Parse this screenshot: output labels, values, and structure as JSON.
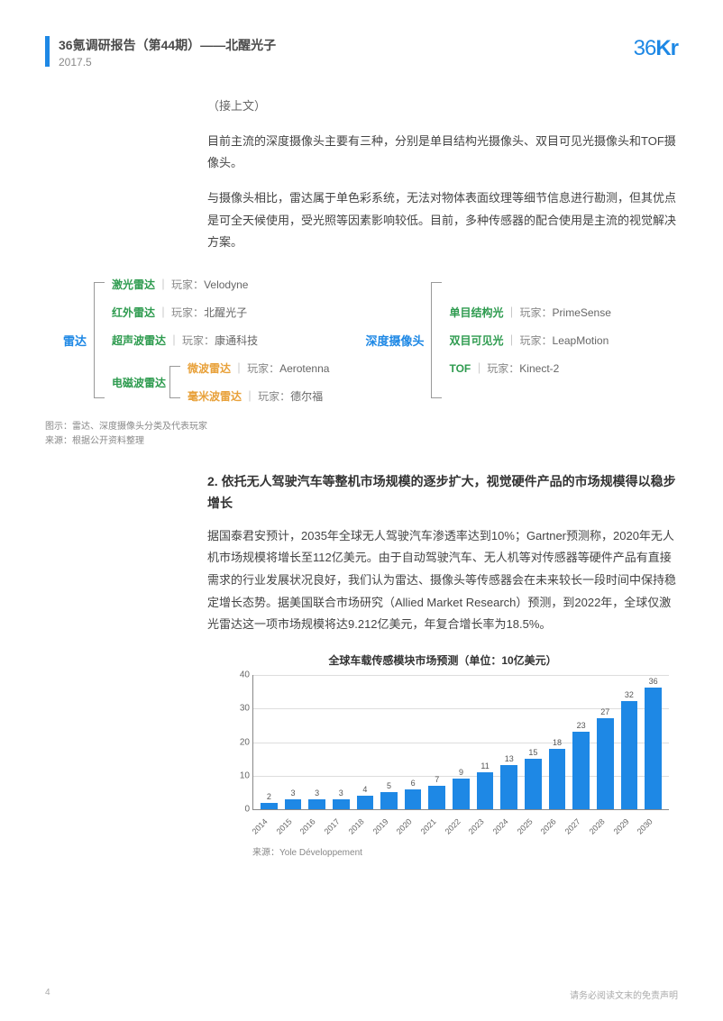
{
  "header": {
    "title": "36氪调研报告（第44期）——北醒光子",
    "date": "2017.5",
    "logo_text": "36Kr",
    "accent_color": "#1e88e5"
  },
  "body": {
    "continuation": "（接上文）",
    "para1": "目前主流的深度摄像头主要有三种，分别是单目结构光摄像头、双目可见光摄像头和TOF摄像头。",
    "para2": "与摄像头相比，雷达属于单色彩系统，无法对物体表面纹理等细节信息进行勘测，但其优点是可全天候使用，受光照等因素影响较低。目前，多种传感器的配合使用是主流的视觉解决方案。"
  },
  "diagram": {
    "left_root": "雷达",
    "right_root": "深度摄像头",
    "player_prefix": "玩家：",
    "left_items": [
      {
        "type": "激光雷达",
        "player": "Velodyne",
        "color": "#2e9b4f"
      },
      {
        "type": "红外雷达",
        "player": "北醒光子",
        "color": "#2e9b4f"
      },
      {
        "type": "超声波雷达",
        "player": "康通科技",
        "color": "#2e9b4f"
      },
      {
        "type": "电磁波雷达",
        "player": "",
        "color": "#2e9b4f",
        "sub": [
          {
            "type": "微波雷达",
            "player": "Aerotenna",
            "color": "#e8a13a"
          },
          {
            "type": "毫米波雷达",
            "player": "德尔福",
            "color": "#e8a13a"
          }
        ]
      }
    ],
    "right_items": [
      {
        "type": "单目结构光",
        "player": "PrimeSense",
        "color": "#2e9b4f"
      },
      {
        "type": "双目可见光",
        "player": "LeapMotion",
        "color": "#2e9b4f"
      },
      {
        "type": "TOF",
        "player": "Kinect-2",
        "color": "#2e9b4f"
      }
    ],
    "caption_line1": "图示：雷达、深度摄像头分类及代表玩家",
    "caption_line2": "来源：根据公开资料整理"
  },
  "section2": {
    "heading": "2. 依托无人驾驶汽车等整机市场规模的逐步扩大，视觉硬件产品的市场规模得以稳步增长",
    "para": "据国泰君安预计，2035年全球无人驾驶汽车渗透率达到10%；Gartner预测称，2020年无人机市场规模将增长至112亿美元。由于自动驾驶汽车、无人机等对传感器等硬件产品有直接需求的行业发展状况良好，我们认为雷达、摄像头等传感器会在未来较长一段时间中保持稳定增长态势。据美国联合市场研究（Allied Market Research）预测，到2022年，全球仅激光雷达这一项市场规模将达9.212亿美元，年复合增长率为18.5%。"
  },
  "chart": {
    "title": "全球车载传感模块市场预测（单位：10亿美元）",
    "type": "bar",
    "categories": [
      "2014",
      "2015",
      "2016",
      "2017",
      "2018",
      "2019",
      "2020",
      "2021",
      "2022",
      "2023",
      "2024",
      "2025",
      "2026",
      "2027",
      "2028",
      "2029",
      "2030"
    ],
    "values": [
      2,
      3,
      3,
      3,
      4,
      5,
      6,
      7,
      9,
      11,
      13,
      15,
      18,
      23,
      27,
      32,
      36
    ],
    "bar_color": "#1e88e5",
    "ylim": [
      0,
      40
    ],
    "yticks": [
      0,
      10,
      20,
      30,
      40
    ],
    "background_color": "#ffffff",
    "grid_color": "#dddddd",
    "axis_color": "#888888",
    "label_fontsize": 9,
    "title_fontsize": 12,
    "bar_width": 0.7,
    "source_label": "来源：Yole Développement"
  },
  "footer": {
    "page_number": "4",
    "disclaimer": "请务必阅读文末的免责声明"
  }
}
